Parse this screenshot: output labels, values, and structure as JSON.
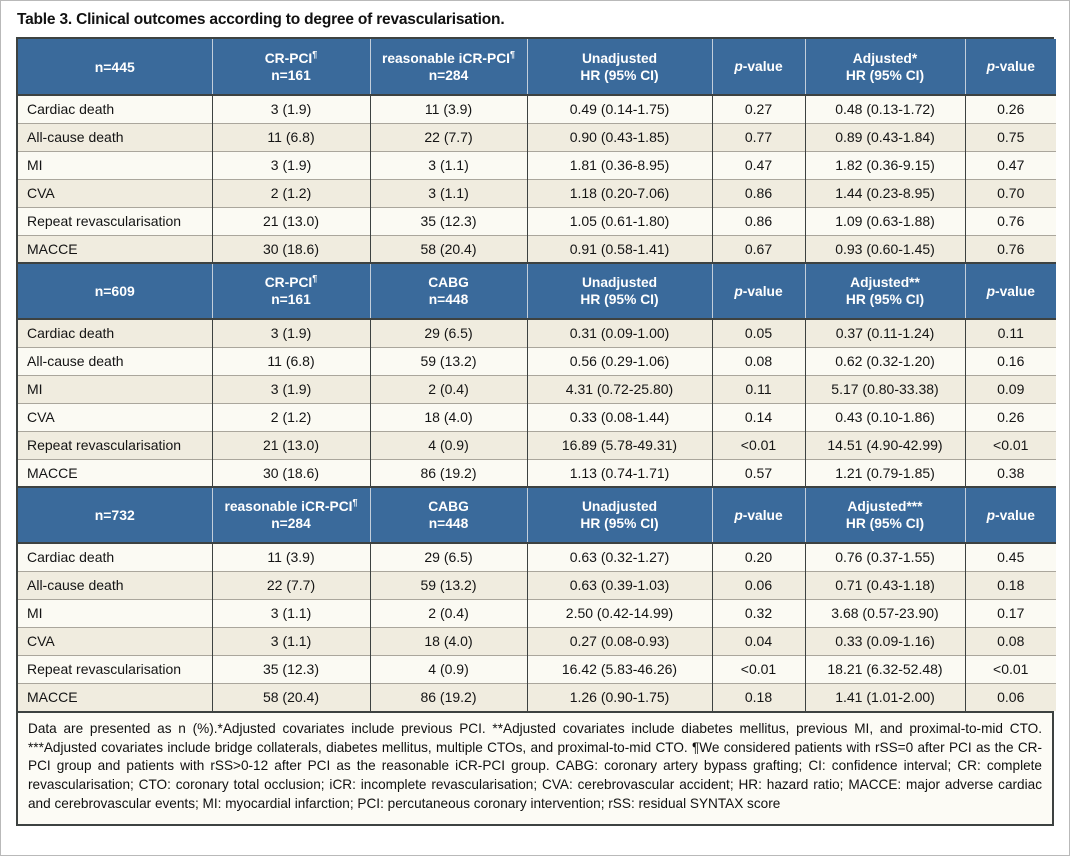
{
  "title": "Table 3. Clinical outcomes according to degree of revascularisation.",
  "colors": {
    "header_bg": "#3a6a9b",
    "header_text": "#ffffff",
    "row_light": "#fbfaf3",
    "row_beige": "#f0ecdf",
    "border_dark": "#3d4241",
    "border_row": "#aaa69c",
    "header_divider": "#c2cedb",
    "footnote_bg": "#fcfbf5",
    "page_bg": "#ffffff",
    "title_color": "#111111"
  },
  "p_value_header": {
    "italic": "p",
    "rest": "-value"
  },
  "row_labels": [
    "Cardiac death",
    "All-cause death",
    "MI",
    "CVA",
    "Repeat revascularisation",
    "MACCE"
  ],
  "sections": [
    {
      "n_label": "n=445",
      "col_headers": [
        {
          "line1": "CR-PCI",
          "sup": "¶",
          "line2": "n=161"
        },
        {
          "line1": "reasonable iCR-PCI",
          "sup": "¶",
          "line2": "n=284"
        },
        {
          "line1": "Unadjusted",
          "line2": "HR (95% CI)"
        },
        {
          "p": true
        },
        {
          "line1": "Adjusted*",
          "line2": "HR (95% CI)"
        },
        {
          "p": true
        }
      ],
      "rows": [
        {
          "label": "Cardiac death",
          "shade": "light",
          "cells": [
            "3 (1.9)",
            "11 (3.9)",
            "0.49 (0.14-1.75)",
            "0.27",
            "0.48 (0.13-1.72)",
            "0.26"
          ]
        },
        {
          "label": "All-cause death",
          "shade": "beige",
          "cells": [
            "11 (6.8)",
            "22 (7.7)",
            "0.90 (0.43-1.85)",
            "0.77",
            "0.89 (0.43-1.84)",
            "0.75"
          ]
        },
        {
          "label": "MI",
          "shade": "light",
          "cells": [
            "3 (1.9)",
            "3 (1.1)",
            "1.81 (0.36-8.95)",
            "0.47",
            "1.82 (0.36-9.15)",
            "0.47"
          ]
        },
        {
          "label": "CVA",
          "shade": "beige",
          "cells": [
            "2 (1.2)",
            "3 (1.1)",
            "1.18 (0.20-7.06)",
            "0.86",
            "1.44 (0.23-8.95)",
            "0.70"
          ]
        },
        {
          "label": "Repeat revascularisation",
          "shade": "light",
          "cells": [
            "21 (13.0)",
            "35 (12.3)",
            "1.05 (0.61-1.80)",
            "0.86",
            "1.09 (0.63-1.88)",
            "0.76"
          ]
        },
        {
          "label": "MACCE",
          "shade": "beige",
          "cells": [
            "30 (18.6)",
            "58 (20.4)",
            "0.91 (0.58-1.41)",
            "0.67",
            "0.93 (0.60-1.45)",
            "0.76"
          ]
        }
      ]
    },
    {
      "n_label": "n=609",
      "col_headers": [
        {
          "line1": "CR-PCI",
          "sup": "¶",
          "line2": "n=161"
        },
        {
          "line1": "CABG",
          "line2": "n=448"
        },
        {
          "line1": "Unadjusted",
          "line2": "HR (95% CI)"
        },
        {
          "p": true
        },
        {
          "line1": "Adjusted**",
          "line2": "HR (95% CI)"
        },
        {
          "p": true
        }
      ],
      "rows": [
        {
          "label": "Cardiac death",
          "shade": "beige",
          "cells": [
            "3 (1.9)",
            "29 (6.5)",
            "0.31 (0.09-1.00)",
            "0.05",
            "0.37 (0.11-1.24)",
            "0.11"
          ]
        },
        {
          "label": "All-cause death",
          "shade": "light",
          "cells": [
            "11 (6.8)",
            "59 (13.2)",
            "0.56 (0.29-1.06)",
            "0.08",
            "0.62 (0.32-1.20)",
            "0.16"
          ]
        },
        {
          "label": "MI",
          "shade": "beige",
          "cells": [
            "3 (1.9)",
            "2 (0.4)",
            "4.31 (0.72-25.80)",
            "0.11",
            "5.17 (0.80-33.38)",
            "0.09"
          ]
        },
        {
          "label": "CVA",
          "shade": "light",
          "cells": [
            "2 (1.2)",
            "18 (4.0)",
            "0.33 (0.08-1.44)",
            "0.14",
            "0.43 (0.10-1.86)",
            "0.26"
          ]
        },
        {
          "label": "Repeat revascularisation",
          "shade": "beige",
          "cells": [
            "21 (13.0)",
            "4 (0.9)",
            "16.89 (5.78-49.31)",
            "<0.01",
            "14.51 (4.90-42.99)",
            "<0.01"
          ]
        },
        {
          "label": "MACCE",
          "shade": "light",
          "cells": [
            "30 (18.6)",
            "86 (19.2)",
            "1.13 (0.74-1.71)",
            "0.57",
            "1.21 (0.79-1.85)",
            "0.38"
          ]
        }
      ]
    },
    {
      "n_label": "n=732",
      "col_headers": [
        {
          "line1": "reasonable iCR-PCI",
          "sup": "¶",
          "line2": "n=284"
        },
        {
          "line1": "CABG",
          "line2": "n=448"
        },
        {
          "line1": "Unadjusted",
          "line2": "HR (95% CI)"
        },
        {
          "p": true
        },
        {
          "line1": "Adjusted***",
          "line2": "HR (95% CI)"
        },
        {
          "p": true
        }
      ],
      "rows": [
        {
          "label": "Cardiac death",
          "shade": "light",
          "cells": [
            "11 (3.9)",
            "29 (6.5)",
            "0.63 (0.32-1.27)",
            "0.20",
            "0.76 (0.37-1.55)",
            "0.45"
          ]
        },
        {
          "label": "All-cause death",
          "shade": "beige",
          "cells": [
            "22 (7.7)",
            "59 (13.2)",
            "0.63 (0.39-1.03)",
            "0.06",
            "0.71 (0.43-1.18)",
            "0.18"
          ]
        },
        {
          "label": "MI",
          "shade": "light",
          "cells": [
            "3 (1.1)",
            "2 (0.4)",
            "2.50 (0.42-14.99)",
            "0.32",
            "3.68 (0.57-23.90)",
            "0.17"
          ]
        },
        {
          "label": "CVA",
          "shade": "beige",
          "cells": [
            "3 (1.1)",
            "18 (4.0)",
            "0.27 (0.08-0.93)",
            "0.04",
            "0.33 (0.09-1.16)",
            "0.08"
          ]
        },
        {
          "label": "Repeat revascularisation",
          "shade": "light",
          "cells": [
            "35 (12.3)",
            "4 (0.9)",
            "16.42 (5.83-46.26)",
            "<0.01",
            "18.21 (6.32-52.48)",
            "<0.01"
          ]
        },
        {
          "label": "MACCE",
          "shade": "beige",
          "cells": [
            "58 (20.4)",
            "86 (19.2)",
            "1.26 (0.90-1.75)",
            "0.18",
            "1.41 (1.01-2.00)",
            "0.06"
          ]
        }
      ]
    }
  ],
  "footnote": "Data are presented as n (%).*Adjusted covariates include previous PCI. **Adjusted covariates include diabetes mellitus, previous MI, and proximal-to-mid CTO. ***Adjusted covariates include bridge collaterals, diabetes mellitus, multiple CTOs, and proximal-to-mid CTO. ¶We considered patients with rSS=0 after PCI as the CR-PCI group and patients with rSS>0-12 after PCI as the reasonable iCR-PCI group. CABG: coronary artery bypass grafting; CI: confidence interval; CR: complete revascularisation; CTO: coronary total occlusion; iCR: incomplete revascularisation; CVA: cerebrovascular accident; HR: hazard ratio; MACCE: major adverse cardiac and cerebrovascular events; MI: myocardial infarction; PCI: percutaneous coronary intervention; rSS: residual SYNTAX score"
}
